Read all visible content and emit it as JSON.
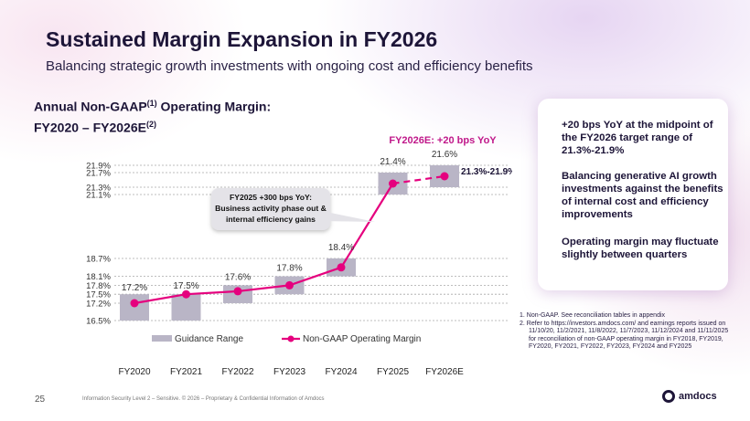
{
  "slide": {
    "title": "Sustained Margin Expansion in FY2026",
    "subtitle": "Balancing strategic growth investments with ongoing cost and efficiency benefits",
    "chart_heading_line1": "Annual Non-GAAP",
    "chart_heading_sup1": "(1)",
    "chart_heading_line1b": " Operating Margin:",
    "chart_heading_line2": "FY2020 – FY2026E",
    "chart_heading_sup2": "(2)",
    "page_number": "25",
    "footer_text": "Information Security Level 2 – Sensitive. © 2026 – Proprietary & Confidential Information of Amdocs",
    "logo_text": "amdocs"
  },
  "side_panel": {
    "p1": "+20 bps YoY at the midpoint of the  FY2026 target range of 21.3%-21.9%",
    "p2": "Balancing generative AI growth investments against the benefits of internal cost and efficiency improvements",
    "p3": "Operating margin may fluctuate slightly between quarters"
  },
  "footnotes": {
    "n1": "1.  Non-GAAP. See reconciliation tables in appendix",
    "n2": "2.  Refer to https://investors.amdocs.com/ and earnings reports issued on 11/10/20, 11/2/2021, 11/8/2022, 11/7/2023, 11/12/2024  and 11/11/2025 for reconciliation of non-GAAP operating margin in FY2018, FY2019, FY2020, FY2021, FY2022, FY2023, FY2024 and FY2025"
  },
  "colors": {
    "guidance": "#b9b5c6",
    "line": "#e5007e",
    "title": "#1d1538"
  },
  "chart_data": {
    "type": "line",
    "categories": [
      "FY2020",
      "FY2021",
      "FY2022",
      "FY2023",
      "FY2024",
      "FY2025",
      "FY2026E"
    ],
    "series": [
      {
        "name": "Guidance Range",
        "type": "range-bar",
        "ranges": [
          [
            16.5,
            17.5
          ],
          [
            16.5,
            17.5
          ],
          [
            17.2,
            17.8
          ],
          [
            17.5,
            18.1
          ],
          [
            18.1,
            18.7
          ],
          [
            21.1,
            21.7
          ],
          [
            21.3,
            21.9
          ]
        ]
      },
      {
        "name": "Non-GAAP Operating Margin",
        "type": "line",
        "values": [
          17.2,
          17.5,
          17.6,
          17.8,
          18.4,
          21.4,
          21.6
        ],
        "labels": [
          "17.2%",
          "17.5%",
          "17.6%",
          "17.8%",
          "18.4%",
          "21.4%",
          "21.6%"
        ]
      }
    ],
    "y_ticks": [
      {
        "value": 21.9,
        "label": "21.9%"
      },
      {
        "value": 21.7,
        "label": "21.7%"
      },
      {
        "value": 21.3,
        "label": "21.3%"
      },
      {
        "value": 21.1,
        "label": "21.1%"
      },
      {
        "value": 18.7,
        "label": "18.7%"
      },
      {
        "value": 18.1,
        "label": "18.1%"
      },
      {
        "value": 17.8,
        "label": "17.8%"
      },
      {
        "value": 17.5,
        "label": "17.5%"
      },
      {
        "value": 17.2,
        "label": "17.2%"
      },
      {
        "value": 16.5,
        "label": "16.5%"
      }
    ],
    "annotations": {
      "fy2026_callout": "FY2026E: +20 bps YoY",
      "range_label": "21.3%-21.9%",
      "fy2025_box_line1": "FY2025 +300 bps YoY:",
      "fy2025_box_line2": "Business activity phase out &",
      "fy2025_box_line3": "internal efficiency gains"
    },
    "legend": {
      "position": "bottom",
      "items": [
        {
          "label": "Guidance Range"
        },
        {
          "label": "Non-GAAP Operating Margin"
        }
      ]
    }
  }
}
